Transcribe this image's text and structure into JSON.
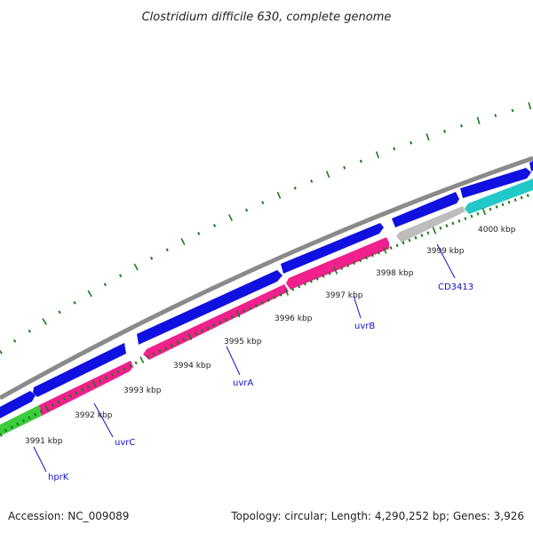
{
  "title": "Clostridium difficile 630, complete genome",
  "footer": {
    "accession": "Accession: NC_009089",
    "summary": "Topology: circular; Length: 4,290,252 bp; Genes: 3,926"
  },
  "colors": {
    "backbone": "#8a8a8a",
    "forward_cds": "#1010e0",
    "reverse_cds_pink": "#f0208c",
    "reverse_cds_green": "#3ccc3c",
    "reverse_cds_gray": "#bdbdbd",
    "reverse_cds_cyan": "#20c8c8",
    "ticks": "#1a7a1a",
    "gene_label": "#1010c8"
  },
  "ticks": [
    {
      "label": "3991 kbp"
    },
    {
      "label": "3992 kbp"
    },
    {
      "label": "3993 kbp"
    },
    {
      "label": "3994 kbp"
    },
    {
      "label": "3995 kbp"
    },
    {
      "label": "3996 kbp"
    },
    {
      "label": "3997 kbp"
    },
    {
      "label": "3998 kbp"
    },
    {
      "label": "3999 kbp"
    },
    {
      "label": "4000 kbp"
    }
  ],
  "gene_labels": [
    {
      "name": "hprK"
    },
    {
      "name": "uvrC"
    },
    {
      "name": "uvrA"
    },
    {
      "name": "uvrB"
    },
    {
      "name": "CD3413"
    }
  ]
}
